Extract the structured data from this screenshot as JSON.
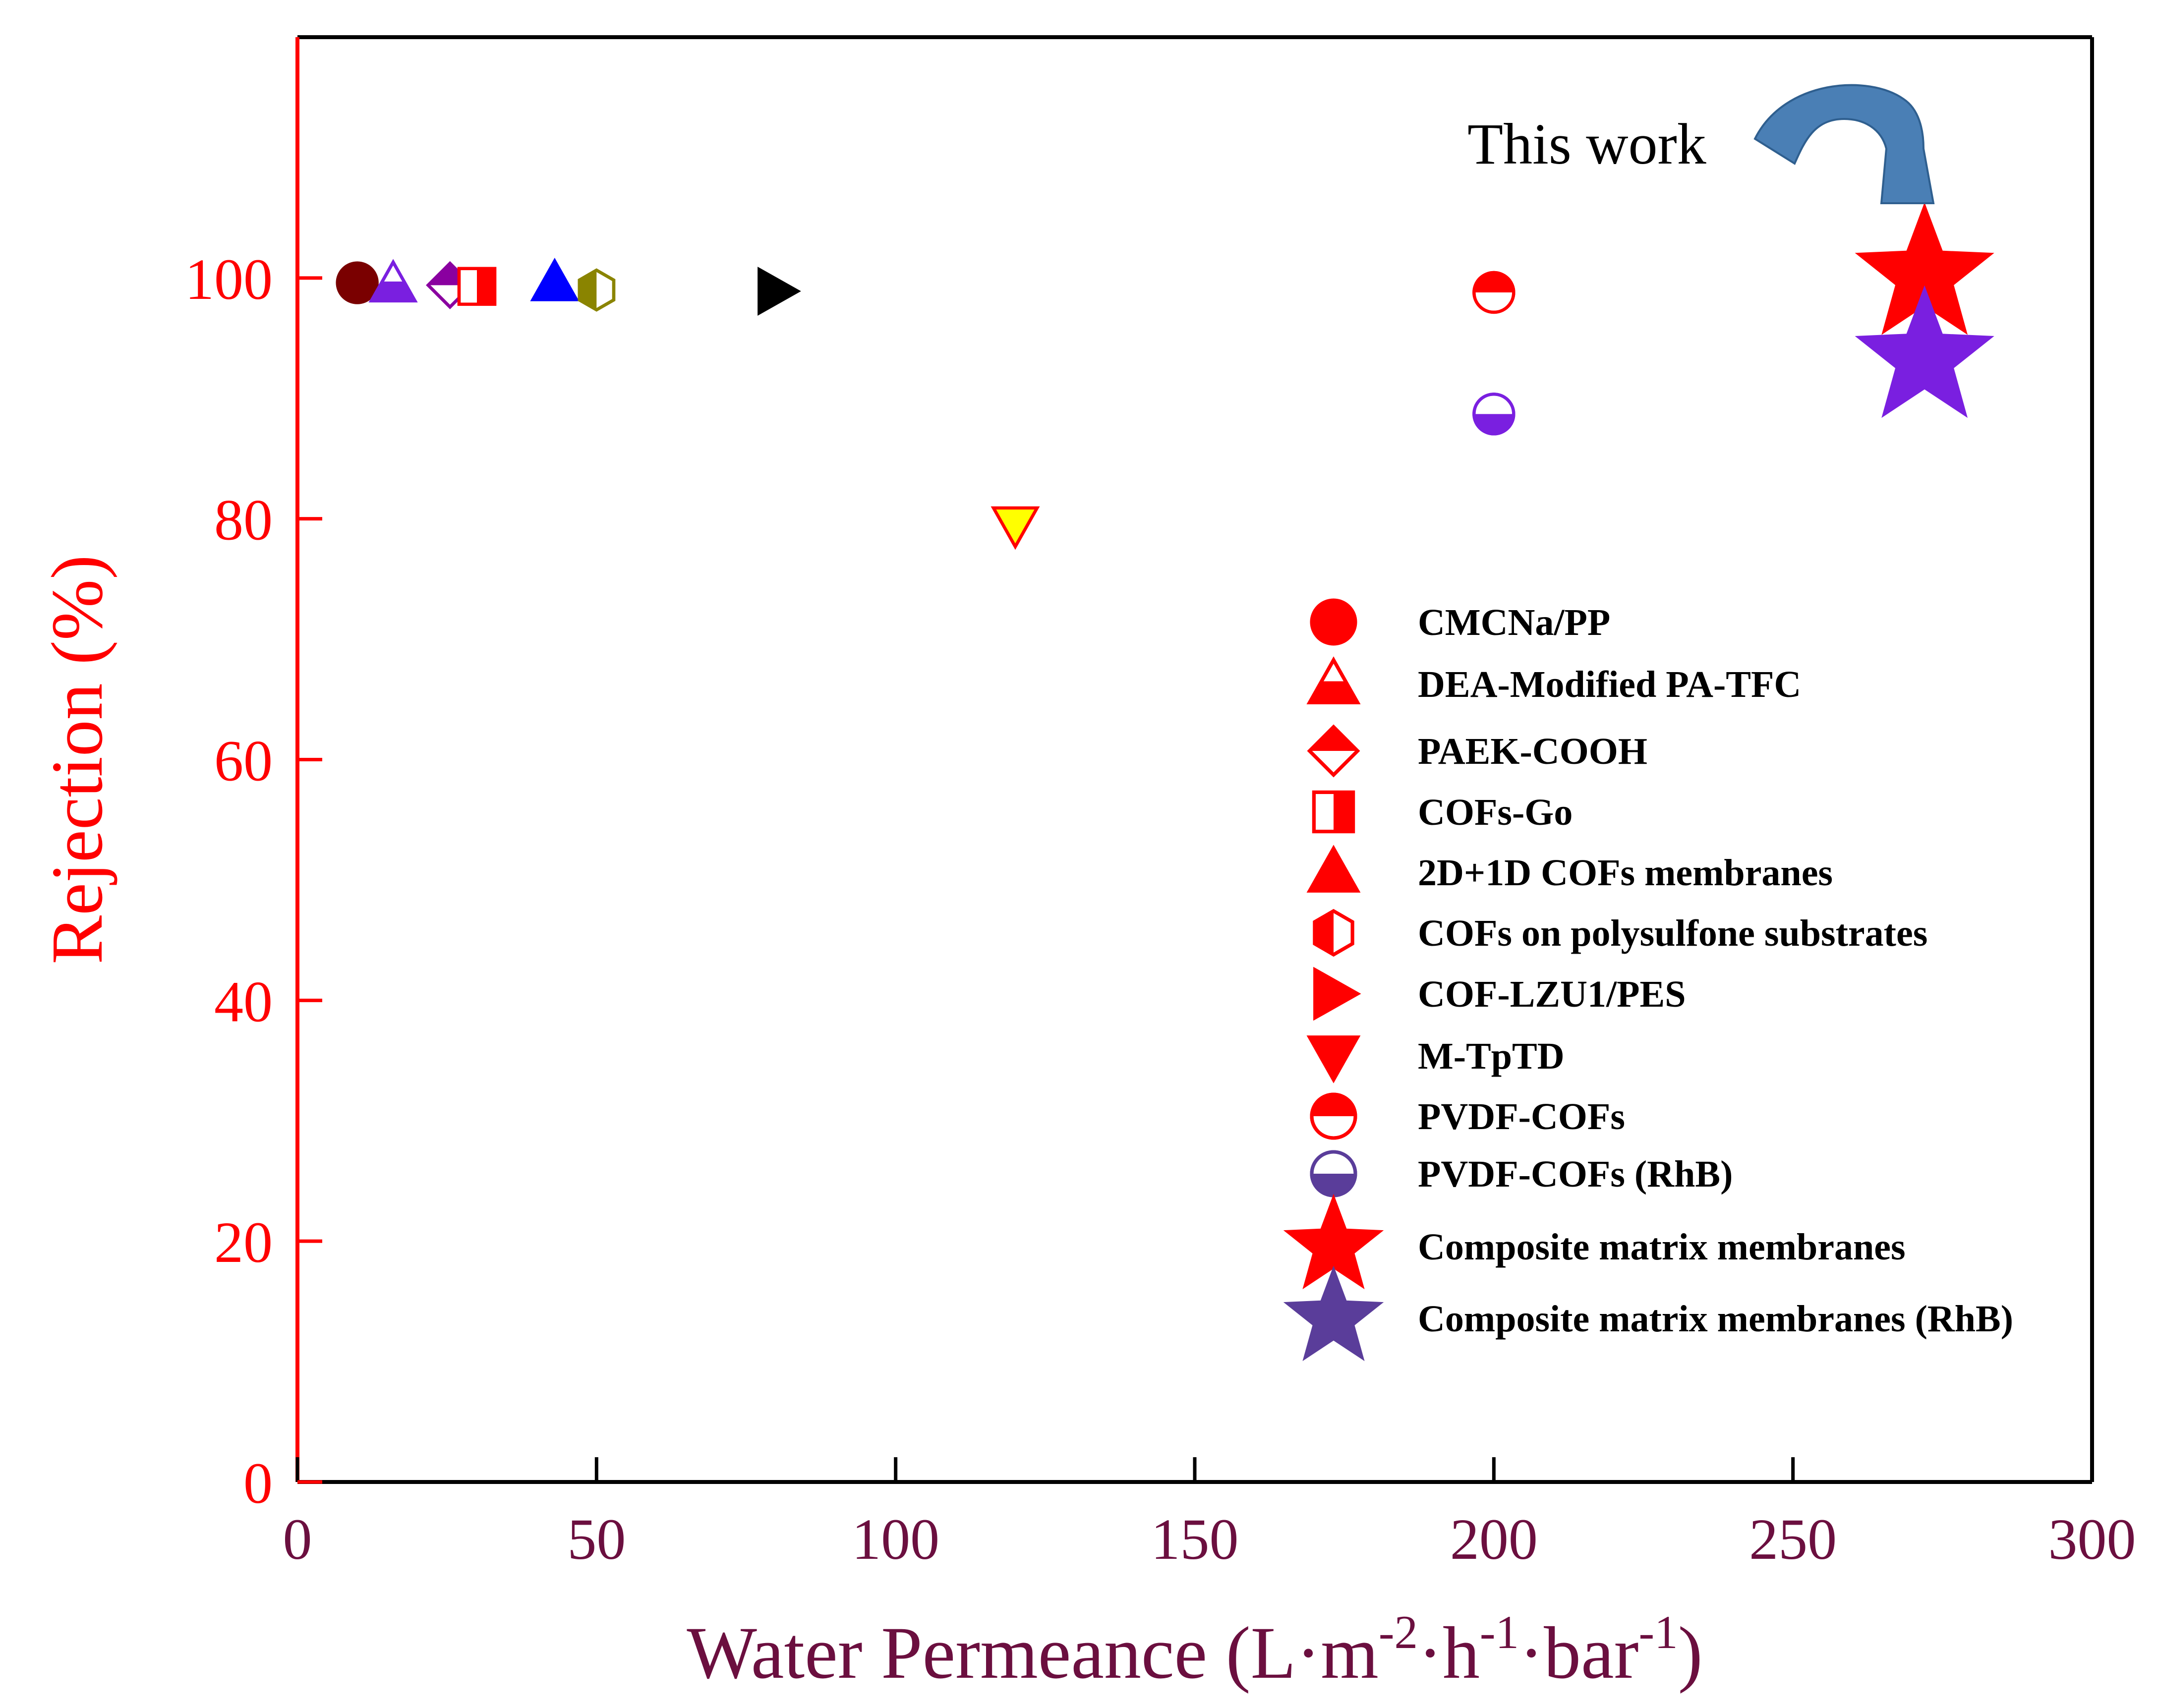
{
  "colors": {
    "y_axis": "#ff0000",
    "x_axis_text": "#6b0f3f",
    "frame": "#000000",
    "red": "#ff0000",
    "purple": "#7a1fe0",
    "dark_purple": "#5a3d9a",
    "maroon": "#7a0000",
    "violet_mark": "#8a00a0",
    "blue": "#0000ff",
    "olive": "#8a8400",
    "black": "#000000",
    "yellow": "#ffff00",
    "arrow": "#4a7fb5"
  },
  "chart_data": {
    "type": "scatter",
    "xlabel": {
      "main": "Water Permeance (L·m",
      "sup1": "-2",
      "mid1": "·h",
      "sup2": "-1",
      "mid2": "·bar",
      "sup3": "-1",
      "end": ")"
    },
    "ylabel": "Rejection (%)",
    "xlim": [
      0,
      300
    ],
    "ylim": [
      0,
      120
    ],
    "x_ticks": [
      0,
      50,
      100,
      150,
      200,
      250,
      300
    ],
    "y_ticks": [
      0,
      20,
      40,
      60,
      80,
      100
    ],
    "legend_position": "right",
    "annotation": "This work",
    "series": [
      {
        "name": "CMCNa/PP",
        "marker": "circle",
        "legend_style": "red-full",
        "points": [
          {
            "x": 10,
            "y": 99.6,
            "style": "maroon-full"
          }
        ]
      },
      {
        "name": "DEA-Modified PA-TFC",
        "marker": "triangle-up",
        "legend_style": "red-bottom",
        "points": [
          {
            "x": 16,
            "y": 99.5,
            "style": "purple-bottom"
          }
        ]
      },
      {
        "name": "PAEK-COOH",
        "marker": "diamond",
        "legend_style": "red-top",
        "points": [
          {
            "x": 25.5,
            "y": 99.4,
            "style": "violet-top"
          }
        ]
      },
      {
        "name": "COFs-Go",
        "marker": "square",
        "legend_style": "red-right",
        "points": [
          {
            "x": 30,
            "y": 99.3,
            "style": "red-right"
          }
        ]
      },
      {
        "name": "2D+1D COFs membranes",
        "marker": "triangle-up",
        "legend_style": "red-full",
        "points": [
          {
            "x": 43,
            "y": 99.6,
            "style": "blue-full"
          }
        ]
      },
      {
        "name": "COFs on polysulfone substrates",
        "marker": "hexagon",
        "legend_style": "red-left",
        "points": [
          {
            "x": 50,
            "y": 99.0,
            "style": "olive-left"
          }
        ]
      },
      {
        "name": "COF-LZU1/PES",
        "marker": "triangle-right",
        "legend_style": "red-full",
        "points": [
          {
            "x": 80,
            "y": 98.9,
            "style": "black-full"
          }
        ]
      },
      {
        "name": "M-TpTD",
        "marker": "triangle-down",
        "legend_style": "red-full",
        "points": [
          {
            "x": 120,
            "y": 79.5,
            "style": "yellow-full"
          }
        ]
      },
      {
        "name": "PVDF-COFs",
        "marker": "circle",
        "legend_style": "red-top",
        "points": [
          {
            "x": 200,
            "y": 98.8,
            "style": "red-top"
          }
        ]
      },
      {
        "name": "PVDF-COFs (RhB)",
        "marker": "circle",
        "legend_style": "darkpurple-bottom",
        "points": [
          {
            "x": 200,
            "y": 88.7,
            "style": "purple-bottom"
          }
        ]
      },
      {
        "name": "Composite matrix membranes",
        "marker": "star",
        "legend_style": "red-full",
        "points": [
          {
            "x": 272,
            "y": 100.2,
            "style": "red-full"
          }
        ]
      },
      {
        "name": "Composite matrix membranes (RhB)",
        "marker": "star",
        "legend_style": "darkpurple-full",
        "points": [
          {
            "x": 272,
            "y": 93.3,
            "style": "purple-full"
          }
        ]
      }
    ]
  }
}
